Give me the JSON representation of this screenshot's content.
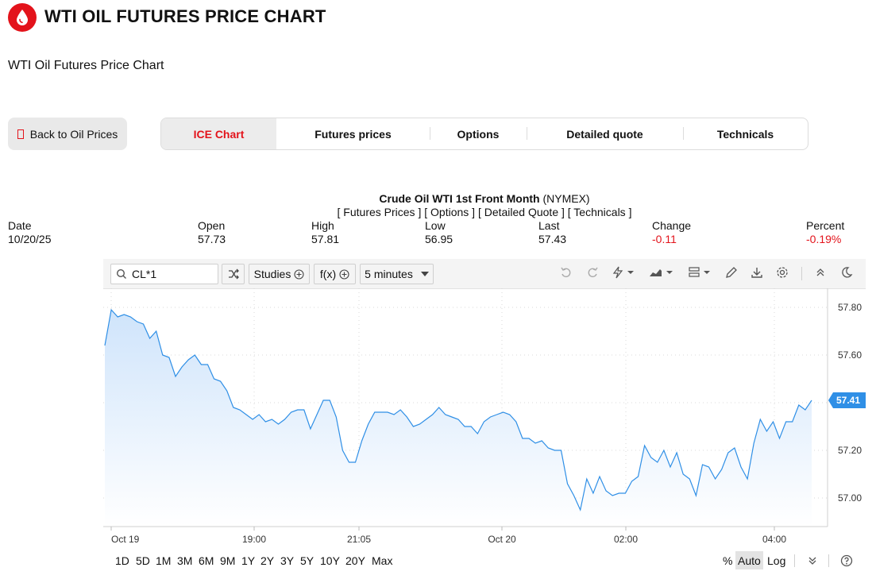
{
  "header": {
    "title": "WTI OIL FUTURES PRICE CHART",
    "subtitle": "WTI Oil Futures Price Chart"
  },
  "nav": {
    "back_label": "Back to Oil Prices",
    "tabs": [
      {
        "label": "ICE Chart",
        "active": true
      },
      {
        "label": "Futures prices",
        "active": false
      },
      {
        "label": "Options",
        "active": false
      },
      {
        "label": "Detailed quote",
        "active": false
      },
      {
        "label": "Technicals",
        "active": false
      }
    ]
  },
  "quote": {
    "name": "Crude Oil WTI 1st Front Month",
    "exchange": "(NYMEX)",
    "links": [
      "[ Futures Prices ]",
      "[ Options ]",
      "[ Detailed Quote ]",
      "[ Technicals ]"
    ],
    "columns": [
      {
        "label": "Date",
        "value": "10/20/25"
      },
      {
        "label": "Open",
        "value": "57.73"
      },
      {
        "label": "High",
        "value": "57.81"
      },
      {
        "label": "Low",
        "value": "56.95"
      },
      {
        "label": "Last",
        "value": "57.43"
      },
      {
        "label": "Change",
        "value": "-0.11"
      },
      {
        "label": "Percent",
        "value": "-0.19%"
      }
    ]
  },
  "toolbar": {
    "symbol": "CL*1",
    "studies_label": "Studies",
    "fx_label": "f(x)",
    "interval_label": "5 minutes"
  },
  "colors": {
    "accent": "#e3131b",
    "line": "#2f8fe6",
    "negative": "#e3131b",
    "last_badge": "#2f8fe6"
  },
  "chart_data": {
    "type": "area",
    "x_ticks": [
      "Oct 19",
      "19:00",
      "21:05",
      "Oct 20",
      "02:00",
      "04:00"
    ],
    "y_ticks": [
      "57.80",
      "57.60",
      "57.20",
      "57.00"
    ],
    "ylim": [
      56.88,
      57.88
    ],
    "grid": true,
    "last_value": "57.41",
    "values": [
      57.64,
      57.79,
      57.76,
      57.77,
      57.76,
      57.74,
      57.73,
      57.67,
      57.7,
      57.6,
      57.59,
      57.51,
      57.55,
      57.58,
      57.6,
      57.56,
      57.56,
      57.5,
      57.49,
      57.45,
      57.38,
      57.37,
      57.35,
      57.33,
      57.35,
      57.32,
      57.33,
      57.31,
      57.33,
      57.36,
      57.37,
      57.37,
      57.29,
      57.35,
      57.41,
      57.41,
      57.34,
      57.2,
      57.15,
      57.15,
      57.24,
      57.31,
      57.36,
      57.36,
      57.36,
      57.35,
      57.37,
      57.34,
      57.3,
      57.31,
      57.33,
      57.35,
      57.38,
      57.35,
      57.34,
      57.33,
      57.3,
      57.3,
      57.27,
      57.32,
      57.34,
      57.35,
      57.36,
      57.35,
      57.32,
      57.25,
      57.25,
      57.23,
      57.24,
      57.21,
      57.2,
      57.2,
      57.06,
      57.01,
      56.95,
      57.08,
      57.02,
      57.09,
      57.03,
      57.01,
      57.02,
      57.02,
      57.07,
      57.09,
      57.22,
      57.17,
      57.15,
      57.2,
      57.13,
      57.19,
      57.1,
      57.08,
      57.01,
      57.14,
      57.13,
      57.08,
      57.12,
      57.19,
      57.21,
      57.13,
      57.08,
      57.23,
      57.33,
      57.28,
      57.32,
      57.25,
      57.32,
      57.32,
      57.39,
      57.37,
      57.41
    ]
  },
  "bottom": {
    "periods": [
      "1D",
      "5D",
      "1M",
      "3M",
      "6M",
      "9M",
      "1Y",
      "2Y",
      "3Y",
      "5Y",
      "10Y",
      "20Y",
      "Max"
    ],
    "right_options": [
      {
        "label": "%",
        "active": false
      },
      {
        "label": "Auto",
        "active": true
      },
      {
        "label": "Log",
        "active": false
      }
    ]
  }
}
